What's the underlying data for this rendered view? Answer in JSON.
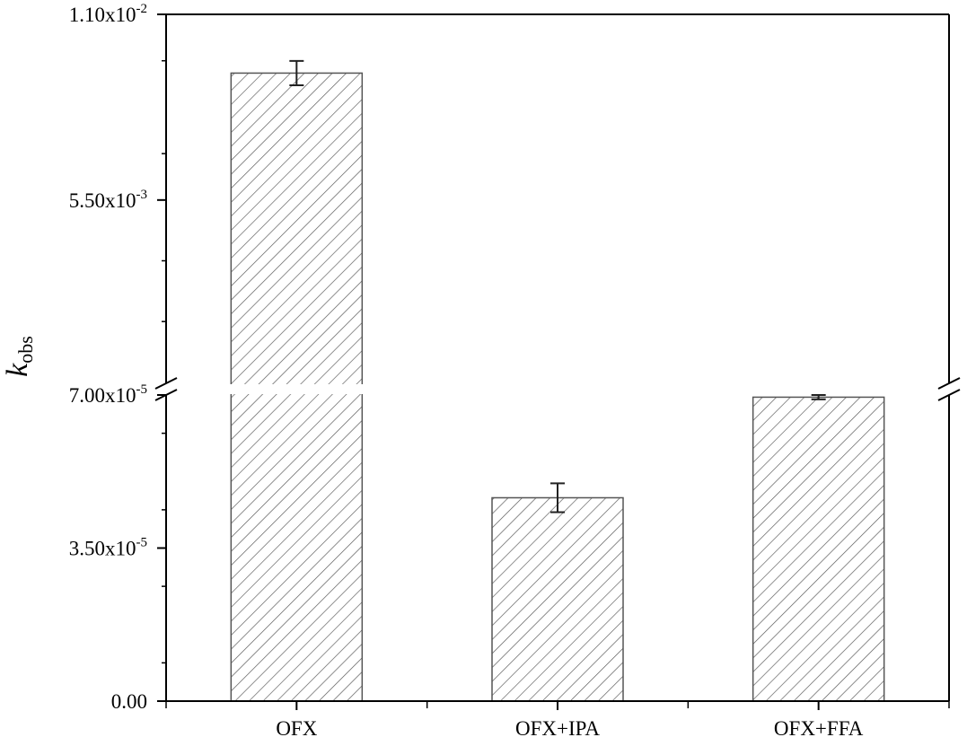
{
  "chart_data": {
    "type": "bar",
    "categories": [
      "OFX",
      "OFX+IPA",
      "OFX+FFA"
    ],
    "values": [
      0.00926,
      4.65e-05,
      6.95e-05
    ],
    "errors": [
      0.00036,
      3.3e-06,
      5e-07
    ],
    "ylabel": {
      "main": "k",
      "sub": "obs"
    },
    "axis_break": true,
    "lower_segment": {
      "ylim": [
        0,
        7e-05
      ],
      "ticks": [
        {
          "value": 0,
          "base": "0.00",
          "exp": ""
        },
        {
          "value": 3.5e-05,
          "base": "3.50x10",
          "exp": "-5"
        },
        {
          "value": 7e-05,
          "base": "7.00x10",
          "exp": "-5"
        }
      ]
    },
    "upper_segment": {
      "ylim": [
        7e-05,
        0.011
      ],
      "ticks": [
        {
          "value": 0.0055,
          "base": "5.50x10",
          "exp": "-3"
        },
        {
          "value": 0.011,
          "base": "1.10x10",
          "exp": "-2"
        }
      ]
    },
    "pattern": "diagonal-hatch",
    "bar_fill": "#ffffff",
    "hatch_color": "#555555",
    "bar_stroke": "#555555",
    "axis_color": "#000000",
    "grid": false,
    "legend": "none"
  }
}
